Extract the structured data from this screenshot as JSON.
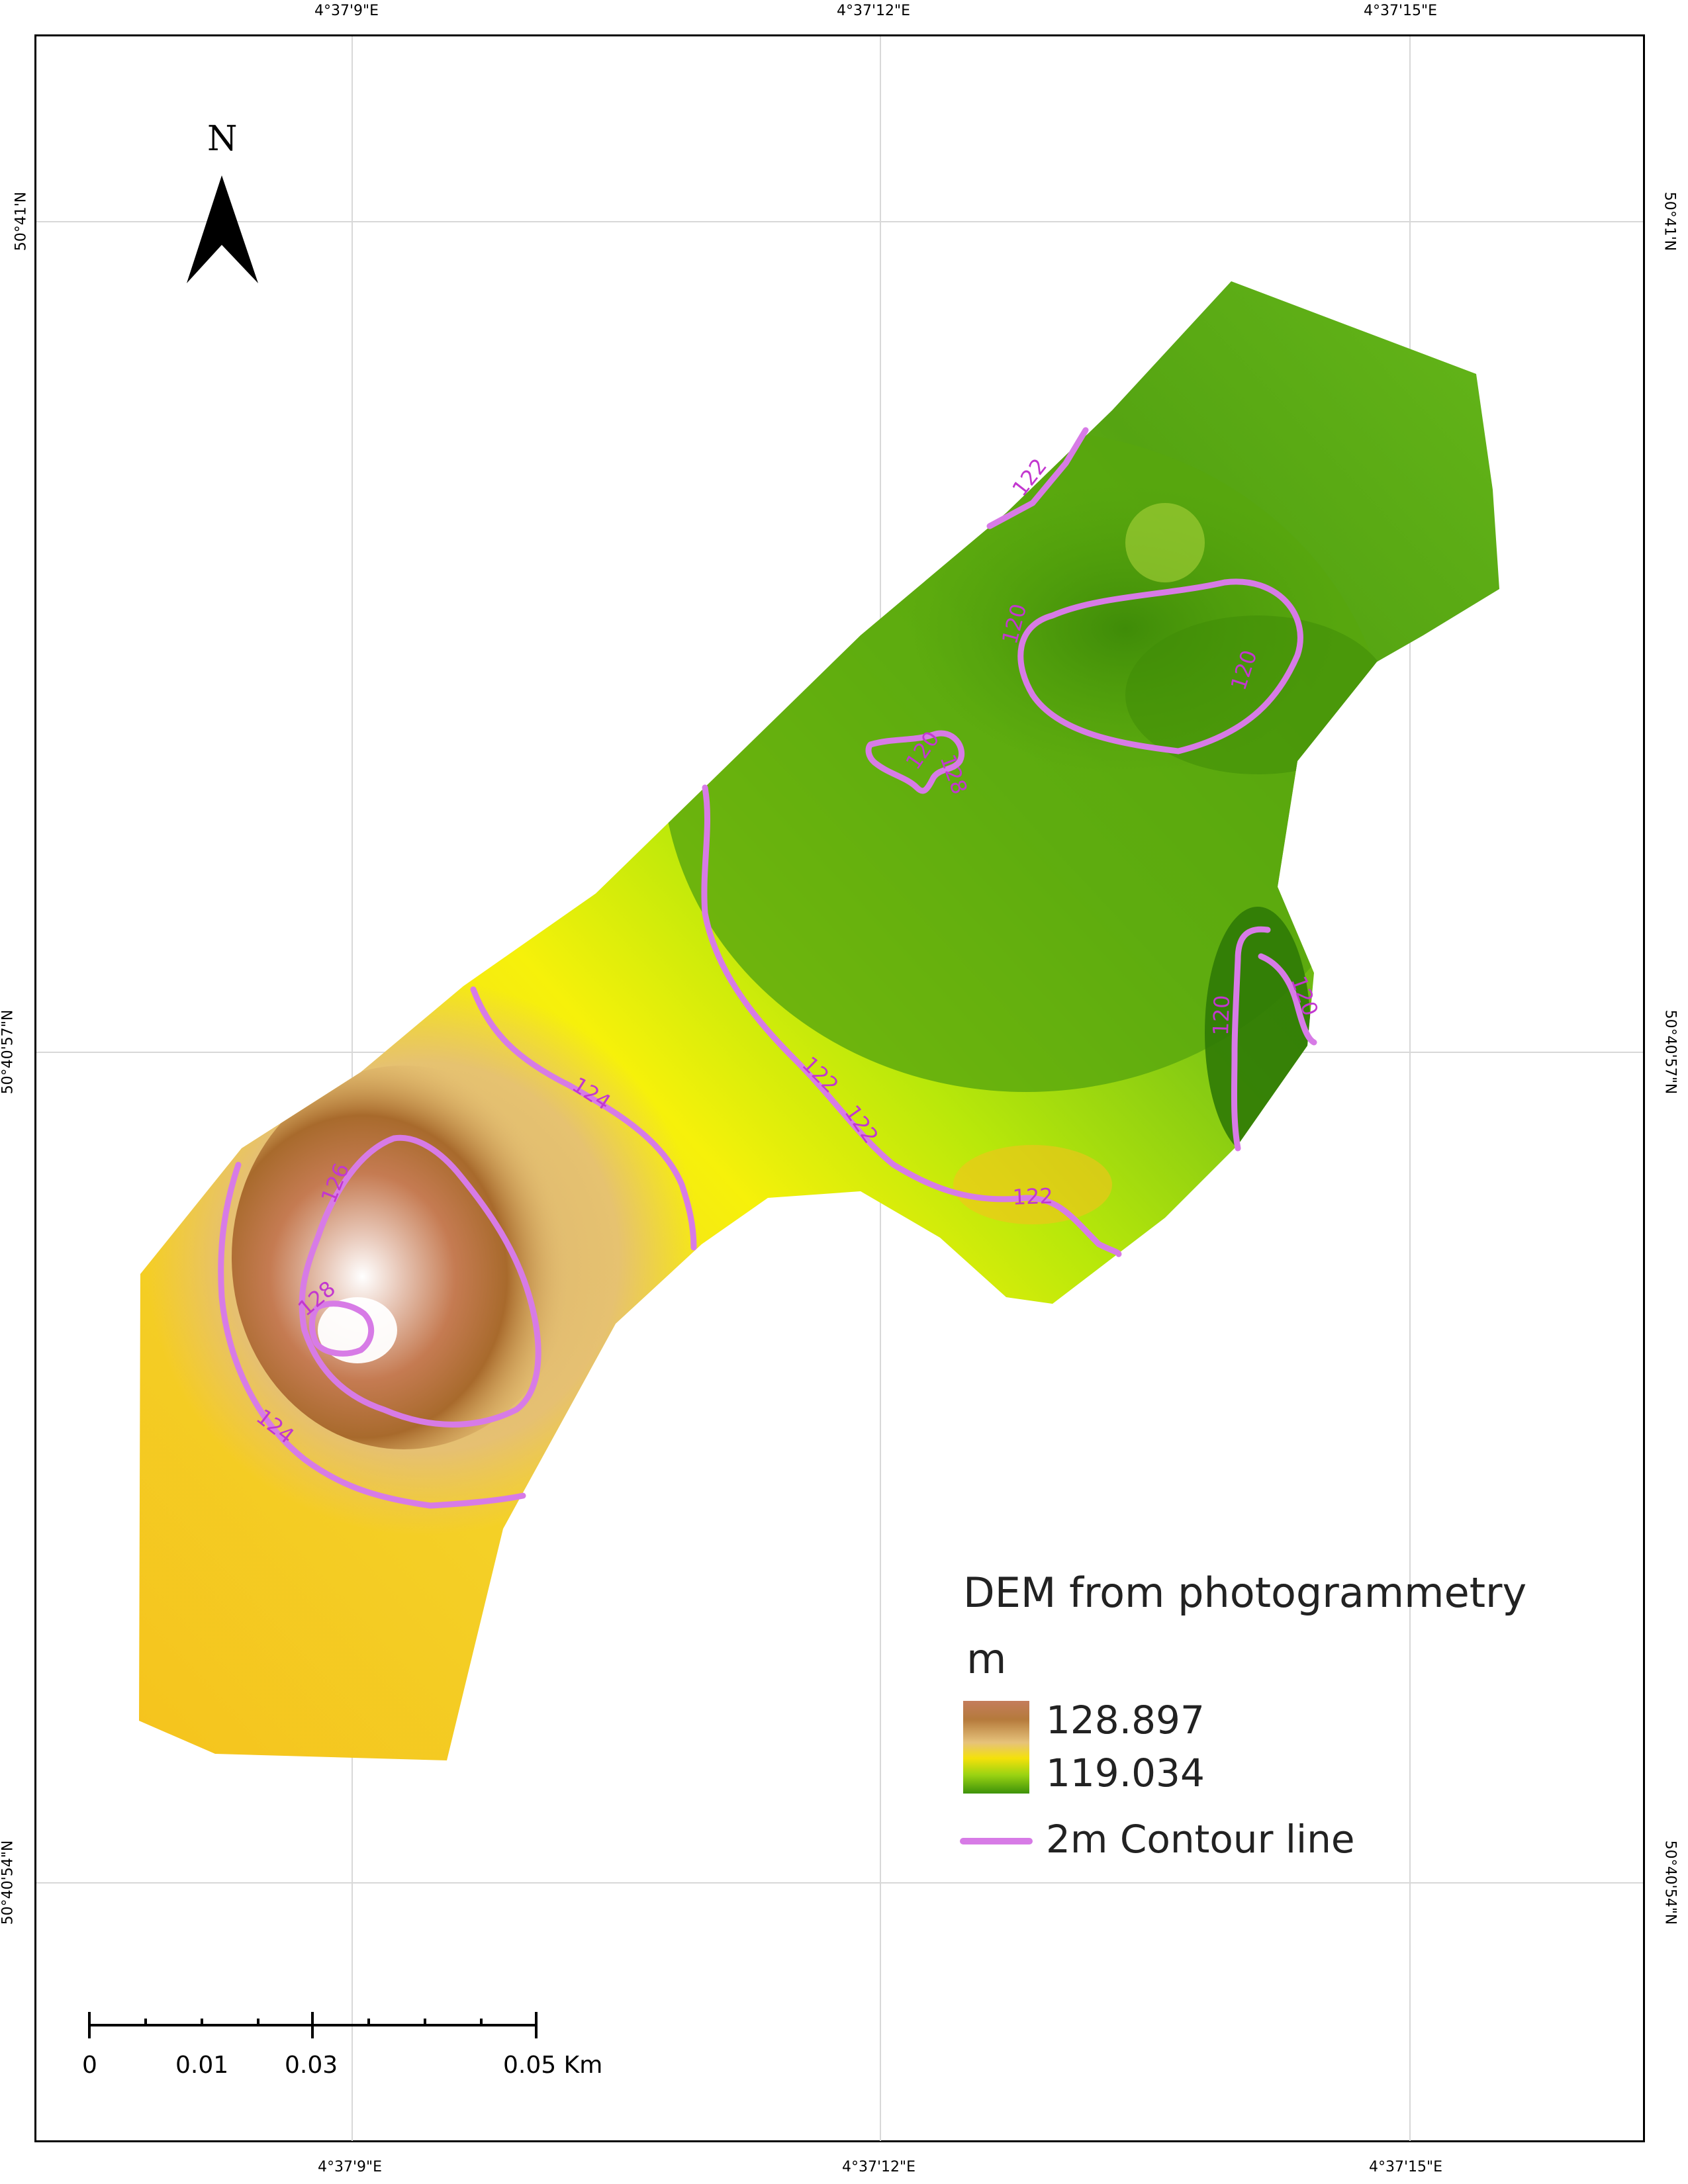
{
  "map": {
    "coordinates": {
      "top": [
        "4°37'9\"E",
        "4°37'12\"E",
        "4°37'15\"E"
      ],
      "bottom": [
        "4°37'9\"E",
        "4°37'12\"E",
        "4°37'15\"E"
      ],
      "left": [
        "50°41'N",
        "50°40'57\"N",
        "50°40'54\"N"
      ],
      "right": [
        "50°41'N",
        "50°40'57\"N",
        "50°40'54\"N"
      ]
    },
    "north_label": "N",
    "contour_labels": [
      "122",
      "120",
      "120",
      "120",
      "128",
      "120",
      "120",
      "124",
      "122",
      "122",
      "122",
      "126",
      "128",
      "124"
    ]
  },
  "legend": {
    "title": "DEM from photogrammetry",
    "unit": "m",
    "max_value": "128.897",
    "min_value": "119.034",
    "contour_label": "2m Contour line",
    "contour_color": "#d77be6"
  },
  "scale_bar": {
    "labels": [
      "0",
      "0.01",
      "0.03",
      "0.05 Km"
    ]
  }
}
